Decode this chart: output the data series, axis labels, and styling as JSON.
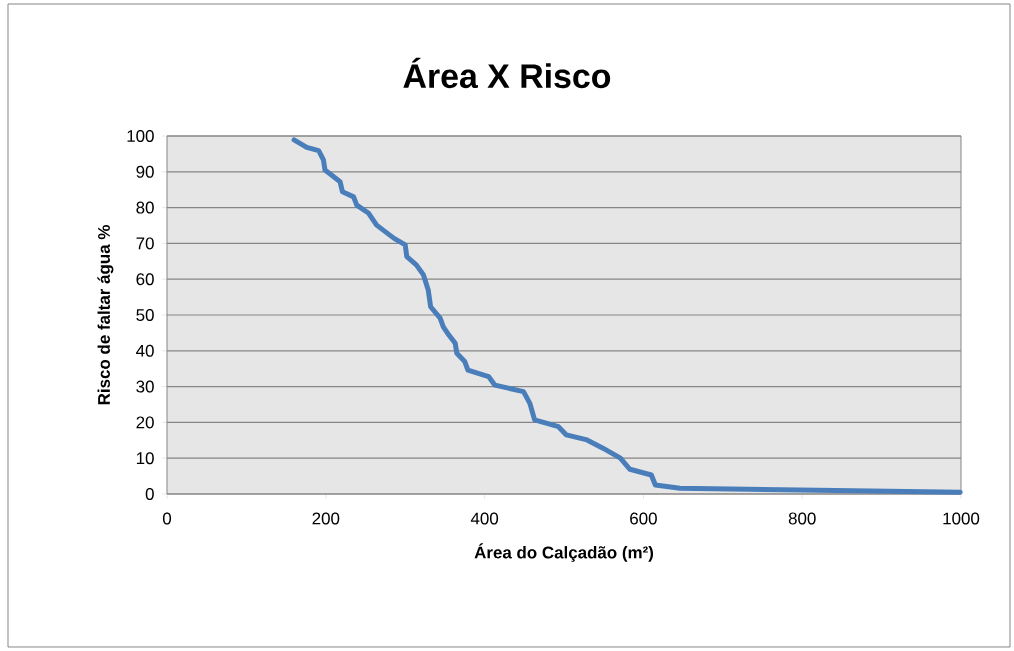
{
  "chart_data": {
    "type": "line",
    "title": "Área X Risco",
    "xlabel": "Área do Calçadão (m²)",
    "ylabel": "Risco de faltar água %",
    "x": [
      160,
      176,
      191,
      197,
      199,
      218,
      221,
      235,
      239,
      254,
      264,
      286,
      300,
      302,
      314,
      323,
      329,
      332,
      344,
      348,
      355,
      363,
      365,
      375,
      379,
      405,
      413,
      449,
      457,
      463,
      493,
      503,
      529,
      549,
      571,
      583,
      610,
      615,
      646,
      797,
      999
    ],
    "values": [
      98.9,
      96.8,
      95.9,
      93.3,
      90.5,
      87.2,
      84.4,
      83.0,
      80.7,
      78.4,
      75.1,
      71.4,
      69.6,
      66.3,
      64.0,
      61.2,
      57.0,
      52.3,
      49.1,
      46.7,
      44.4,
      42.1,
      39.3,
      37.0,
      34.6,
      32.8,
      30.4,
      28.6,
      25.3,
      20.7,
      18.8,
      16.5,
      15.1,
      12.8,
      10.0,
      6.9,
      5.3,
      2.5,
      1.6,
      1.1,
      0.5
    ],
    "color": "#4a7ebb",
    "xlim": [
      0,
      1000
    ],
    "ylim": [
      0,
      100
    ],
    "xticks": [
      0,
      200,
      400,
      600,
      800,
      1000
    ],
    "yticks": [
      0,
      10,
      20,
      30,
      40,
      50,
      60,
      70,
      80,
      90,
      100
    ],
    "grid": "y"
  }
}
